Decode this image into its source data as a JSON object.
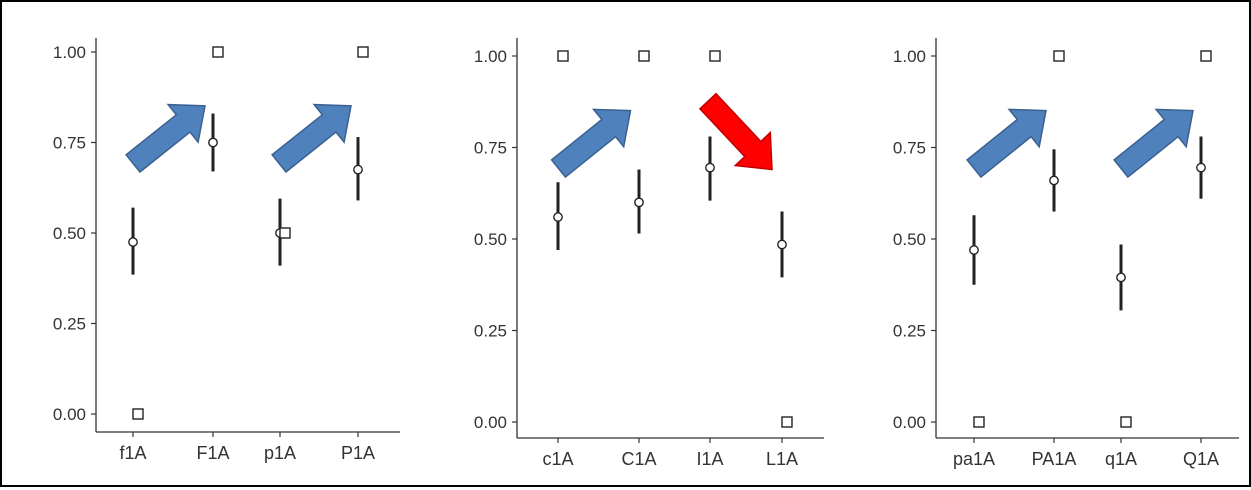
{
  "chart_data": [
    {
      "type": "scatter",
      "categories": [
        "f1A",
        "F1A",
        "p1A",
        "P1A"
      ],
      "ylim": [
        -0.05,
        1.05
      ],
      "yticks": [
        "0.00",
        "0.25",
        "0.50",
        "0.75",
        "1.00"
      ],
      "points": [
        {
          "category": "f1A",
          "mean": 0.475,
          "lower": 0.385,
          "upper": 0.57,
          "observed": 0.0
        },
        {
          "category": "F1A",
          "mean": 0.75,
          "lower": 0.67,
          "upper": 0.83,
          "observed": 1.0
        },
        {
          "category": "p1A",
          "mean": 0.5,
          "lower": 0.41,
          "upper": 0.595,
          "observed": 0.5
        },
        {
          "category": "P1A",
          "mean": 0.675,
          "lower": 0.59,
          "upper": 0.765,
          "observed": 1.0
        }
      ],
      "arrows": [
        {
          "between": [
            "f1A",
            "F1A"
          ],
          "direction": "up",
          "color": "#4F81BD"
        },
        {
          "between": [
            "p1A",
            "P1A"
          ],
          "direction": "up",
          "color": "#4F81BD"
        }
      ],
      "grid": false
    },
    {
      "type": "scatter",
      "categories": [
        "c1A",
        "C1A",
        "I1A",
        "L1A"
      ],
      "ylim": [
        -0.05,
        1.05
      ],
      "yticks": [
        "0.00",
        "0.25",
        "0.50",
        "0.75",
        "1.00"
      ],
      "points": [
        {
          "category": "c1A",
          "mean": 0.56,
          "lower": 0.47,
          "upper": 0.655,
          "observed": 1.0
        },
        {
          "category": "C1A",
          "mean": 0.6,
          "lower": 0.515,
          "upper": 0.69,
          "observed": 1.0
        },
        {
          "category": "I1A",
          "mean": 0.695,
          "lower": 0.605,
          "upper": 0.78,
          "observed": 1.0
        },
        {
          "category": "L1A",
          "mean": 0.485,
          "lower": 0.395,
          "upper": 0.575,
          "observed": 0.0
        }
      ],
      "arrows": [
        {
          "between": [
            "c1A",
            "C1A"
          ],
          "direction": "up",
          "color": "#4F81BD"
        },
        {
          "between": [
            "I1A",
            "L1A"
          ],
          "direction": "down",
          "color": "#FF0000"
        }
      ],
      "grid": false
    },
    {
      "type": "scatter",
      "categories": [
        "pa1A",
        "PA1A",
        "q1A",
        "Q1A"
      ],
      "ylim": [
        -0.05,
        1.05
      ],
      "yticks": [
        "0.00",
        "0.25",
        "0.50",
        "0.75",
        "1.00"
      ],
      "points": [
        {
          "category": "pa1A",
          "mean": 0.47,
          "lower": 0.375,
          "upper": 0.565,
          "observed": 0.0
        },
        {
          "category": "PA1A",
          "mean": 0.66,
          "lower": 0.575,
          "upper": 0.745,
          "observed": 1.0
        },
        {
          "category": "q1A",
          "mean": 0.395,
          "lower": 0.305,
          "upper": 0.485,
          "observed": 0.0
        },
        {
          "category": "Q1A",
          "mean": 0.695,
          "lower": 0.61,
          "upper": 0.78,
          "observed": 1.0
        }
      ],
      "arrows": [
        {
          "between": [
            "pa1A",
            "PA1A"
          ],
          "direction": "up",
          "color": "#4F81BD"
        },
        {
          "between": [
            "q1A",
            "Q1A"
          ],
          "direction": "up",
          "color": "#4F81BD"
        }
      ],
      "grid": false
    }
  ]
}
